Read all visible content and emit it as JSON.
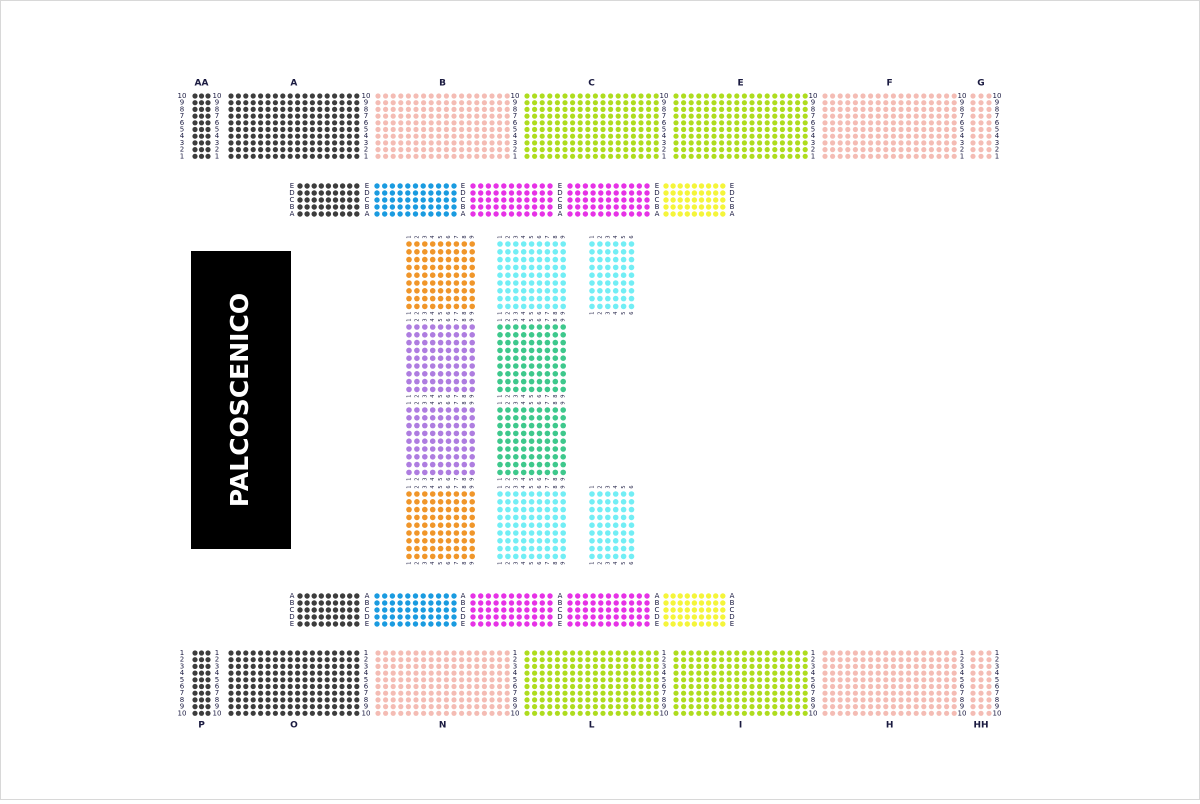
{
  "stage": "PALCOSCENICO",
  "seat_numbers": [
    "1",
    "2",
    "3",
    "4",
    "5",
    "6",
    "7",
    "8",
    "9",
    "10"
  ],
  "row_letters": [
    "A",
    "B",
    "C",
    "D",
    "E"
  ],
  "top_sections": [
    {
      "label": "AA",
      "color": "#3d3d3d"
    },
    {
      "label": "A",
      "color": "#3d3d3d"
    },
    {
      "label": "B",
      "color": "#f4bcb4"
    },
    {
      "label": "C",
      "color": "#aedc1e"
    },
    {
      "label": "E",
      "color": "#aedc1e"
    },
    {
      "label": "F",
      "color": "#f4bcb4"
    },
    {
      "label": "G",
      "color": "#f4bcb4"
    }
  ],
  "bottom_sections": [
    {
      "label": "P",
      "color": "#3d3d3d"
    },
    {
      "label": "O",
      "color": "#3d3d3d"
    },
    {
      "label": "N",
      "color": "#f4bcb4"
    },
    {
      "label": "L",
      "color": "#aedc1e"
    },
    {
      "label": "I",
      "color": "#aedc1e"
    },
    {
      "label": "H",
      "color": "#f4bcb4"
    },
    {
      "label": "HH",
      "color": "#f4bcb4"
    }
  ],
  "strip_colors": [
    "#3d3d3d",
    "#1a9be0",
    "#e632e6",
    "#e632e6",
    "#f5f53a"
  ],
  "middle_blocks": [
    [
      "#f0962a",
      "#72eef5",
      "#72eef5"
    ],
    [
      "#ae7de0",
      "#3ec88c"
    ],
    [
      "#ae7de0",
      "#3ec88c"
    ],
    [
      "#f0962a",
      "#72eef5",
      "#72eef5"
    ]
  ]
}
